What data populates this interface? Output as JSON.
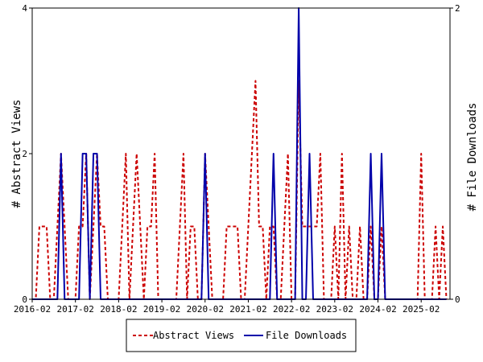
{
  "chart_data": {
    "type": "line",
    "xlabel": "",
    "ylabel_left": "# Abstract Views",
    "ylabel_right": "# File Downloads",
    "ylim_left": [
      0,
      4
    ],
    "ylim_right": [
      0,
      2
    ],
    "yticks_left": [
      "0",
      "2",
      "4"
    ],
    "yticks_right": [
      "0",
      "2"
    ],
    "x_tick_labels": [
      "2016-02",
      "2017-02",
      "2018-02",
      "2019-02",
      "2020-02",
      "2021-02",
      "2022-02",
      "2023-02",
      "2024-02",
      "2025-02"
    ],
    "x_start": "2016-02",
    "grid": false,
    "legend_position": "bottom",
    "series": [
      {
        "name": "Abstract Views",
        "axis": "left",
        "color": "#cc0000",
        "style": "dashed",
        "points": [
          [
            "2016-02",
            0
          ],
          [
            "2016-03",
            0
          ],
          [
            "2016-04",
            1
          ],
          [
            "2016-05",
            1
          ],
          [
            "2016-06",
            1
          ],
          [
            "2016-07",
            0
          ],
          [
            "2016-08",
            0
          ],
          [
            "2016-09",
            1
          ],
          [
            "2016-10",
            2
          ],
          [
            "2016-11",
            1
          ],
          [
            "2016-12",
            0
          ],
          [
            "2017-01",
            0
          ],
          [
            "2017-02",
            0
          ],
          [
            "2017-03",
            1
          ],
          [
            "2017-04",
            1
          ],
          [
            "2017-05",
            2
          ],
          [
            "2017-06",
            0
          ],
          [
            "2017-07",
            1
          ],
          [
            "2017-08",
            2
          ],
          [
            "2017-09",
            1
          ],
          [
            "2017-10",
            1
          ],
          [
            "2017-11",
            0
          ],
          [
            "2017-12",
            0
          ],
          [
            "2018-01",
            0
          ],
          [
            "2018-02",
            0
          ],
          [
            "2018-03",
            1
          ],
          [
            "2018-04",
            2
          ],
          [
            "2018-05",
            0
          ],
          [
            "2018-06",
            1
          ],
          [
            "2018-07",
            2
          ],
          [
            "2018-08",
            1
          ],
          [
            "2018-09",
            0
          ],
          [
            "2018-10",
            1
          ],
          [
            "2018-11",
            1
          ],
          [
            "2018-12",
            2
          ],
          [
            "2019-01",
            0
          ],
          [
            "2019-02",
            0
          ],
          [
            "2019-03",
            0
          ],
          [
            "2019-04",
            0
          ],
          [
            "2019-05",
            0
          ],
          [
            "2019-06",
            0
          ],
          [
            "2019-07",
            1
          ],
          [
            "2019-08",
            2
          ],
          [
            "2019-09",
            0
          ],
          [
            "2019-10",
            1
          ],
          [
            "2019-11",
            1
          ],
          [
            "2019-12",
            0
          ],
          [
            "2020-01",
            0
          ],
          [
            "2020-02",
            2
          ],
          [
            "2020-03",
            1
          ],
          [
            "2020-04",
            0
          ],
          [
            "2020-05",
            0
          ],
          [
            "2020-06",
            0
          ],
          [
            "2020-07",
            0
          ],
          [
            "2020-08",
            1
          ],
          [
            "2020-09",
            1
          ],
          [
            "2020-10",
            1
          ],
          [
            "2020-11",
            1
          ],
          [
            "2020-12",
            0
          ],
          [
            "2021-01",
            0
          ],
          [
            "2021-02",
            1
          ],
          [
            "2021-03",
            2
          ],
          [
            "2021-04",
            3
          ],
          [
            "2021-05",
            1
          ],
          [
            "2021-06",
            1
          ],
          [
            "2021-07",
            0
          ],
          [
            "2021-08",
            1
          ],
          [
            "2021-09",
            1
          ],
          [
            "2021-10",
            0
          ],
          [
            "2021-11",
            0
          ],
          [
            "2021-12",
            1
          ],
          [
            "2022-01",
            2
          ],
          [
            "2022-02",
            0
          ],
          [
            "2022-03",
            0
          ],
          [
            "2022-04",
            3
          ],
          [
            "2022-05",
            1
          ],
          [
            "2022-06",
            1
          ],
          [
            "2022-07",
            1
          ],
          [
            "2022-08",
            1
          ],
          [
            "2022-09",
            1
          ],
          [
            "2022-10",
            2
          ],
          [
            "2022-11",
            0
          ],
          [
            "2022-12",
            0
          ],
          [
            "2023-01",
            0
          ],
          [
            "2023-02",
            1
          ],
          [
            "2023-03",
            0
          ],
          [
            "2023-04",
            2
          ],
          [
            "2023-05",
            0
          ],
          [
            "2023-06",
            1
          ],
          [
            "2023-07",
            0
          ],
          [
            "2023-08",
            0
          ],
          [
            "2023-09",
            1
          ],
          [
            "2023-10",
            0
          ],
          [
            "2023-11",
            0
          ],
          [
            "2023-12",
            1
          ],
          [
            "2024-01",
            0
          ],
          [
            "2024-02",
            0
          ],
          [
            "2024-03",
            1
          ],
          [
            "2024-04",
            0
          ],
          [
            "2024-05",
            0
          ],
          [
            "2024-06",
            0
          ],
          [
            "2024-07",
            0
          ],
          [
            "2024-08",
            0
          ],
          [
            "2024-09",
            0
          ],
          [
            "2024-10",
            0
          ],
          [
            "2024-11",
            0
          ],
          [
            "2024-12",
            0
          ],
          [
            "2025-01",
            0
          ],
          [
            "2025-02",
            2
          ],
          [
            "2025-03",
            0
          ],
          [
            "2025-04",
            0
          ],
          [
            "2025-05",
            0
          ],
          [
            "2025-06",
            1
          ],
          [
            "2025-07",
            0
          ],
          [
            "2025-08",
            1
          ],
          [
            "2025-09",
            0
          ]
        ]
      },
      {
        "name": "File Downloads",
        "axis": "right",
        "color": "#0000aa",
        "style": "solid",
        "points": [
          [
            "2016-02",
            0
          ],
          [
            "2016-03",
            0
          ],
          [
            "2016-04",
            0
          ],
          [
            "2016-05",
            0
          ],
          [
            "2016-06",
            0
          ],
          [
            "2016-07",
            0
          ],
          [
            "2016-08",
            0
          ],
          [
            "2016-09",
            0
          ],
          [
            "2016-10",
            1
          ],
          [
            "2016-11",
            0
          ],
          [
            "2016-12",
            0
          ],
          [
            "2017-01",
            0
          ],
          [
            "2017-02",
            0
          ],
          [
            "2017-03",
            0
          ],
          [
            "2017-04",
            1
          ],
          [
            "2017-05",
            1
          ],
          [
            "2017-06",
            0
          ],
          [
            "2017-07",
            1
          ],
          [
            "2017-08",
            1
          ],
          [
            "2017-09",
            0
          ],
          [
            "2017-10",
            0
          ],
          [
            "2017-11",
            0
          ],
          [
            "2017-12",
            0
          ],
          [
            "2018-01",
            0
          ],
          [
            "2018-02",
            0
          ],
          [
            "2018-03",
            0
          ],
          [
            "2018-04",
            0
          ],
          [
            "2018-05",
            0
          ],
          [
            "2018-06",
            0
          ],
          [
            "2018-07",
            0
          ],
          [
            "2018-08",
            0
          ],
          [
            "2018-09",
            0
          ],
          [
            "2018-10",
            0
          ],
          [
            "2018-11",
            0
          ],
          [
            "2018-12",
            0
          ],
          [
            "2019-01",
            0
          ],
          [
            "2019-02",
            0
          ],
          [
            "2019-03",
            0
          ],
          [
            "2019-04",
            0
          ],
          [
            "2019-05",
            0
          ],
          [
            "2019-06",
            0
          ],
          [
            "2019-07",
            0
          ],
          [
            "2019-08",
            0
          ],
          [
            "2019-09",
            0
          ],
          [
            "2019-10",
            0
          ],
          [
            "2019-11",
            0
          ],
          [
            "2019-12",
            0
          ],
          [
            "2020-01",
            0
          ],
          [
            "2020-02",
            1
          ],
          [
            "2020-03",
            0
          ],
          [
            "2020-04",
            0
          ],
          [
            "2020-05",
            0
          ],
          [
            "2020-06",
            0
          ],
          [
            "2020-07",
            0
          ],
          [
            "2020-08",
            0
          ],
          [
            "2020-09",
            0
          ],
          [
            "2020-10",
            0
          ],
          [
            "2020-11",
            0
          ],
          [
            "2020-12",
            0
          ],
          [
            "2021-01",
            0
          ],
          [
            "2021-02",
            0
          ],
          [
            "2021-03",
            0
          ],
          [
            "2021-04",
            0
          ],
          [
            "2021-05",
            0
          ],
          [
            "2021-06",
            0
          ],
          [
            "2021-07",
            0
          ],
          [
            "2021-08",
            0
          ],
          [
            "2021-09",
            1
          ],
          [
            "2021-10",
            0
          ],
          [
            "2021-11",
            0
          ],
          [
            "2021-12",
            0
          ],
          [
            "2022-01",
            0
          ],
          [
            "2022-02",
            0
          ],
          [
            "2022-03",
            0
          ],
          [
            "2022-04",
            2
          ],
          [
            "2022-05",
            0
          ],
          [
            "2022-06",
            0
          ],
          [
            "2022-07",
            1
          ],
          [
            "2022-08",
            0
          ],
          [
            "2022-09",
            0
          ],
          [
            "2022-10",
            0
          ],
          [
            "2022-11",
            0
          ],
          [
            "2022-12",
            0
          ],
          [
            "2023-01",
            0
          ],
          [
            "2023-02",
            0
          ],
          [
            "2023-03",
            0
          ],
          [
            "2023-04",
            0
          ],
          [
            "2023-05",
            0
          ],
          [
            "2023-06",
            0
          ],
          [
            "2023-07",
            0
          ],
          [
            "2023-08",
            0
          ],
          [
            "2023-09",
            0
          ],
          [
            "2023-10",
            0
          ],
          [
            "2023-11",
            0
          ],
          [
            "2023-12",
            1
          ],
          [
            "2024-01",
            0
          ],
          [
            "2024-02",
            0
          ],
          [
            "2024-03",
            1
          ],
          [
            "2024-04",
            0
          ],
          [
            "2024-05",
            0
          ],
          [
            "2024-06",
            0
          ],
          [
            "2024-07",
            0
          ],
          [
            "2024-08",
            0
          ],
          [
            "2024-09",
            0
          ],
          [
            "2024-10",
            0
          ],
          [
            "2024-11",
            0
          ],
          [
            "2024-12",
            0
          ],
          [
            "2025-01",
            0
          ],
          [
            "2025-02",
            0
          ],
          [
            "2025-03",
            0
          ],
          [
            "2025-04",
            0
          ],
          [
            "2025-05",
            0
          ],
          [
            "2025-06",
            0
          ],
          [
            "2025-07",
            0
          ],
          [
            "2025-08",
            0
          ],
          [
            "2025-09",
            0
          ]
        ]
      }
    ]
  }
}
